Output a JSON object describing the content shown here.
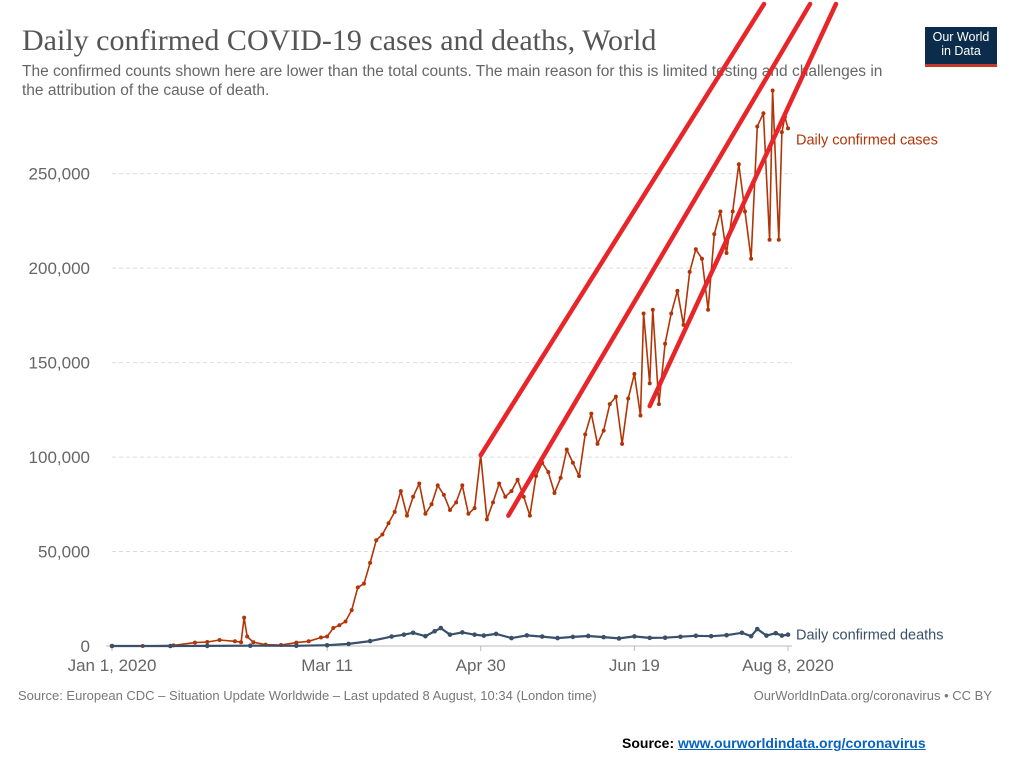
{
  "title": "Daily confirmed COVID-19 cases and deaths, World",
  "subtitle": "The confirmed counts shown here are lower than the total counts. The main reason for this is limited testing and challenges in the attribution of the cause of death.",
  "logo": {
    "line1": "Our World",
    "line2": "in Data"
  },
  "footer": {
    "source": "Source: European CDC – Situation Update Worldwide – Last updated 8 August, 10:34 (London time)",
    "owid": "OurWorldInData.org/coronavirus • CC BY"
  },
  "source_link": {
    "prefix": "Source: ",
    "url_text": "www.ourworldindata.org/coronavirus"
  },
  "colors": {
    "cases": "#b13507",
    "deaths": "#3a4f6a",
    "annotation": "#e8262a",
    "grid": "#dddddd"
  },
  "chart_data": {
    "type": "line",
    "title": "Daily confirmed COVID-19 cases and deaths, World",
    "x_type": "date",
    "xlim": [
      "2020-01-01",
      "2020-08-08"
    ],
    "x_ticks": [
      {
        "date": "2020-01-01",
        "label": "Jan 1, 2020"
      },
      {
        "date": "2020-03-11",
        "label": "Mar 11"
      },
      {
        "date": "2020-04-30",
        "label": "Apr 30"
      },
      {
        "date": "2020-06-19",
        "label": "Jun 19"
      },
      {
        "date": "2020-08-08",
        "label": "Aug 8, 2020"
      }
    ],
    "ylim": [
      0,
      280000
    ],
    "y_ticks": [
      {
        "value": 0,
        "label": "0"
      },
      {
        "value": 50000,
        "label": "50,000"
      },
      {
        "value": 100000,
        "label": "100,000"
      },
      {
        "value": 150000,
        "label": "150,000"
      },
      {
        "value": 200000,
        "label": "200,000"
      },
      {
        "value": 250000,
        "label": "250,000"
      }
    ],
    "grid": true,
    "series": [
      {
        "name": "Daily confirmed cases",
        "color": "#b13507",
        "points": [
          [
            "2020-01-01",
            0
          ],
          [
            "2020-01-11",
            0
          ],
          [
            "2020-01-21",
            300
          ],
          [
            "2020-01-28",
            1800
          ],
          [
            "2020-02-01",
            2100
          ],
          [
            "2020-02-05",
            3200
          ],
          [
            "2020-02-10",
            2500
          ],
          [
            "2020-02-12",
            2000
          ],
          [
            "2020-02-13",
            15000
          ],
          [
            "2020-02-14",
            5000
          ],
          [
            "2020-02-16",
            2000
          ],
          [
            "2020-02-20",
            700
          ],
          [
            "2020-02-25",
            500
          ],
          [
            "2020-03-01",
            1800
          ],
          [
            "2020-03-05",
            2500
          ],
          [
            "2020-03-09",
            4500
          ],
          [
            "2020-03-11",
            5000
          ],
          [
            "2020-03-13",
            9500
          ],
          [
            "2020-03-15",
            11000
          ],
          [
            "2020-03-17",
            13000
          ],
          [
            "2020-03-19",
            19000
          ],
          [
            "2020-03-21",
            31000
          ],
          [
            "2020-03-23",
            33000
          ],
          [
            "2020-03-25",
            44000
          ],
          [
            "2020-03-27",
            56000
          ],
          [
            "2020-03-29",
            59000
          ],
          [
            "2020-03-31",
            65000
          ],
          [
            "2020-04-02",
            71000
          ],
          [
            "2020-04-04",
            82000
          ],
          [
            "2020-04-06",
            69000
          ],
          [
            "2020-04-08",
            79000
          ],
          [
            "2020-04-10",
            86000
          ],
          [
            "2020-04-12",
            70000
          ],
          [
            "2020-04-14",
            75000
          ],
          [
            "2020-04-16",
            85000
          ],
          [
            "2020-04-18",
            80000
          ],
          [
            "2020-04-20",
            72000
          ],
          [
            "2020-04-22",
            76000
          ],
          [
            "2020-04-24",
            85000
          ],
          [
            "2020-04-26",
            70000
          ],
          [
            "2020-04-28",
            73000
          ],
          [
            "2020-04-30",
            101000
          ],
          [
            "2020-05-02",
            67000
          ],
          [
            "2020-05-04",
            76000
          ],
          [
            "2020-05-06",
            86000
          ],
          [
            "2020-05-08",
            79000
          ],
          [
            "2020-05-10",
            82000
          ],
          [
            "2020-05-12",
            88000
          ],
          [
            "2020-05-14",
            79000
          ],
          [
            "2020-05-16",
            69000
          ],
          [
            "2020-05-18",
            90000
          ],
          [
            "2020-05-20",
            97000
          ],
          [
            "2020-05-22",
            92000
          ],
          [
            "2020-05-24",
            81000
          ],
          [
            "2020-05-26",
            89000
          ],
          [
            "2020-05-28",
            104000
          ],
          [
            "2020-05-30",
            97000
          ],
          [
            "2020-06-01",
            90000
          ],
          [
            "2020-06-03",
            112000
          ],
          [
            "2020-06-05",
            123000
          ],
          [
            "2020-06-07",
            107000
          ],
          [
            "2020-06-09",
            114000
          ],
          [
            "2020-06-11",
            128000
          ],
          [
            "2020-06-13",
            132000
          ],
          [
            "2020-06-15",
            107000
          ],
          [
            "2020-06-17",
            131000
          ],
          [
            "2020-06-19",
            144000
          ],
          [
            "2020-06-21",
            122000
          ],
          [
            "2020-06-22",
            176000
          ],
          [
            "2020-06-24",
            139000
          ],
          [
            "2020-06-25",
            178000
          ],
          [
            "2020-06-27",
            128000
          ],
          [
            "2020-06-29",
            160000
          ],
          [
            "2020-07-01",
            176000
          ],
          [
            "2020-07-03",
            188000
          ],
          [
            "2020-07-05",
            170000
          ],
          [
            "2020-07-07",
            198000
          ],
          [
            "2020-07-09",
            210000
          ],
          [
            "2020-07-11",
            205000
          ],
          [
            "2020-07-13",
            178000
          ],
          [
            "2020-07-15",
            218000
          ],
          [
            "2020-07-17",
            230000
          ],
          [
            "2020-07-19",
            208000
          ],
          [
            "2020-07-21",
            230000
          ],
          [
            "2020-07-23",
            255000
          ],
          [
            "2020-07-25",
            230000
          ],
          [
            "2020-07-27",
            205000
          ],
          [
            "2020-07-29",
            275000
          ],
          [
            "2020-07-31",
            282000
          ],
          [
            "2020-08-02",
            215000
          ],
          [
            "2020-08-03",
            294000
          ],
          [
            "2020-08-05",
            215000
          ],
          [
            "2020-08-06",
            272000
          ],
          [
            "2020-08-07",
            280000
          ],
          [
            "2020-08-08",
            274000
          ]
        ]
      },
      {
        "name": "Daily confirmed deaths",
        "color": "#3a4f6a",
        "points": [
          [
            "2020-01-01",
            0
          ],
          [
            "2020-01-20",
            0
          ],
          [
            "2020-02-01",
            50
          ],
          [
            "2020-02-15",
            150
          ],
          [
            "2020-03-01",
            100
          ],
          [
            "2020-03-11",
            400
          ],
          [
            "2020-03-18",
            1100
          ],
          [
            "2020-03-25",
            2600
          ],
          [
            "2020-04-01",
            5000
          ],
          [
            "2020-04-05",
            6000
          ],
          [
            "2020-04-08",
            7000
          ],
          [
            "2020-04-12",
            5200
          ],
          [
            "2020-04-15",
            7800
          ],
          [
            "2020-04-17",
            9500
          ],
          [
            "2020-04-20",
            6000
          ],
          [
            "2020-04-24",
            7200
          ],
          [
            "2020-04-28",
            6000
          ],
          [
            "2020-05-01",
            5500
          ],
          [
            "2020-05-05",
            6400
          ],
          [
            "2020-05-10",
            4200
          ],
          [
            "2020-05-15",
            5600
          ],
          [
            "2020-05-20",
            5000
          ],
          [
            "2020-05-25",
            4200
          ],
          [
            "2020-05-30",
            4800
          ],
          [
            "2020-06-04",
            5300
          ],
          [
            "2020-06-09",
            4700
          ],
          [
            "2020-06-14",
            4000
          ],
          [
            "2020-06-19",
            5100
          ],
          [
            "2020-06-24",
            4300
          ],
          [
            "2020-06-29",
            4400
          ],
          [
            "2020-07-04",
            4900
          ],
          [
            "2020-07-09",
            5400
          ],
          [
            "2020-07-14",
            5200
          ],
          [
            "2020-07-19",
            5700
          ],
          [
            "2020-07-24",
            7000
          ],
          [
            "2020-07-27",
            5200
          ],
          [
            "2020-07-29",
            9000
          ],
          [
            "2020-08-01",
            5500
          ],
          [
            "2020-08-04",
            6800
          ],
          [
            "2020-08-06",
            5500
          ],
          [
            "2020-08-08",
            6000
          ]
        ]
      }
    ],
    "annotations": [
      {
        "type": "trend-line",
        "from": [
          "2020-04-30",
          101000
        ],
        "to": [
          "2020-08-08",
          360000
        ]
      },
      {
        "type": "trend-line",
        "from": [
          "2020-05-09",
          69000
        ],
        "to": [
          "2020-08-08",
          320000
        ]
      },
      {
        "type": "trend-line",
        "from": [
          "2020-06-24",
          127000
        ],
        "to": [
          "2020-08-08",
          285000
        ]
      }
    ]
  }
}
